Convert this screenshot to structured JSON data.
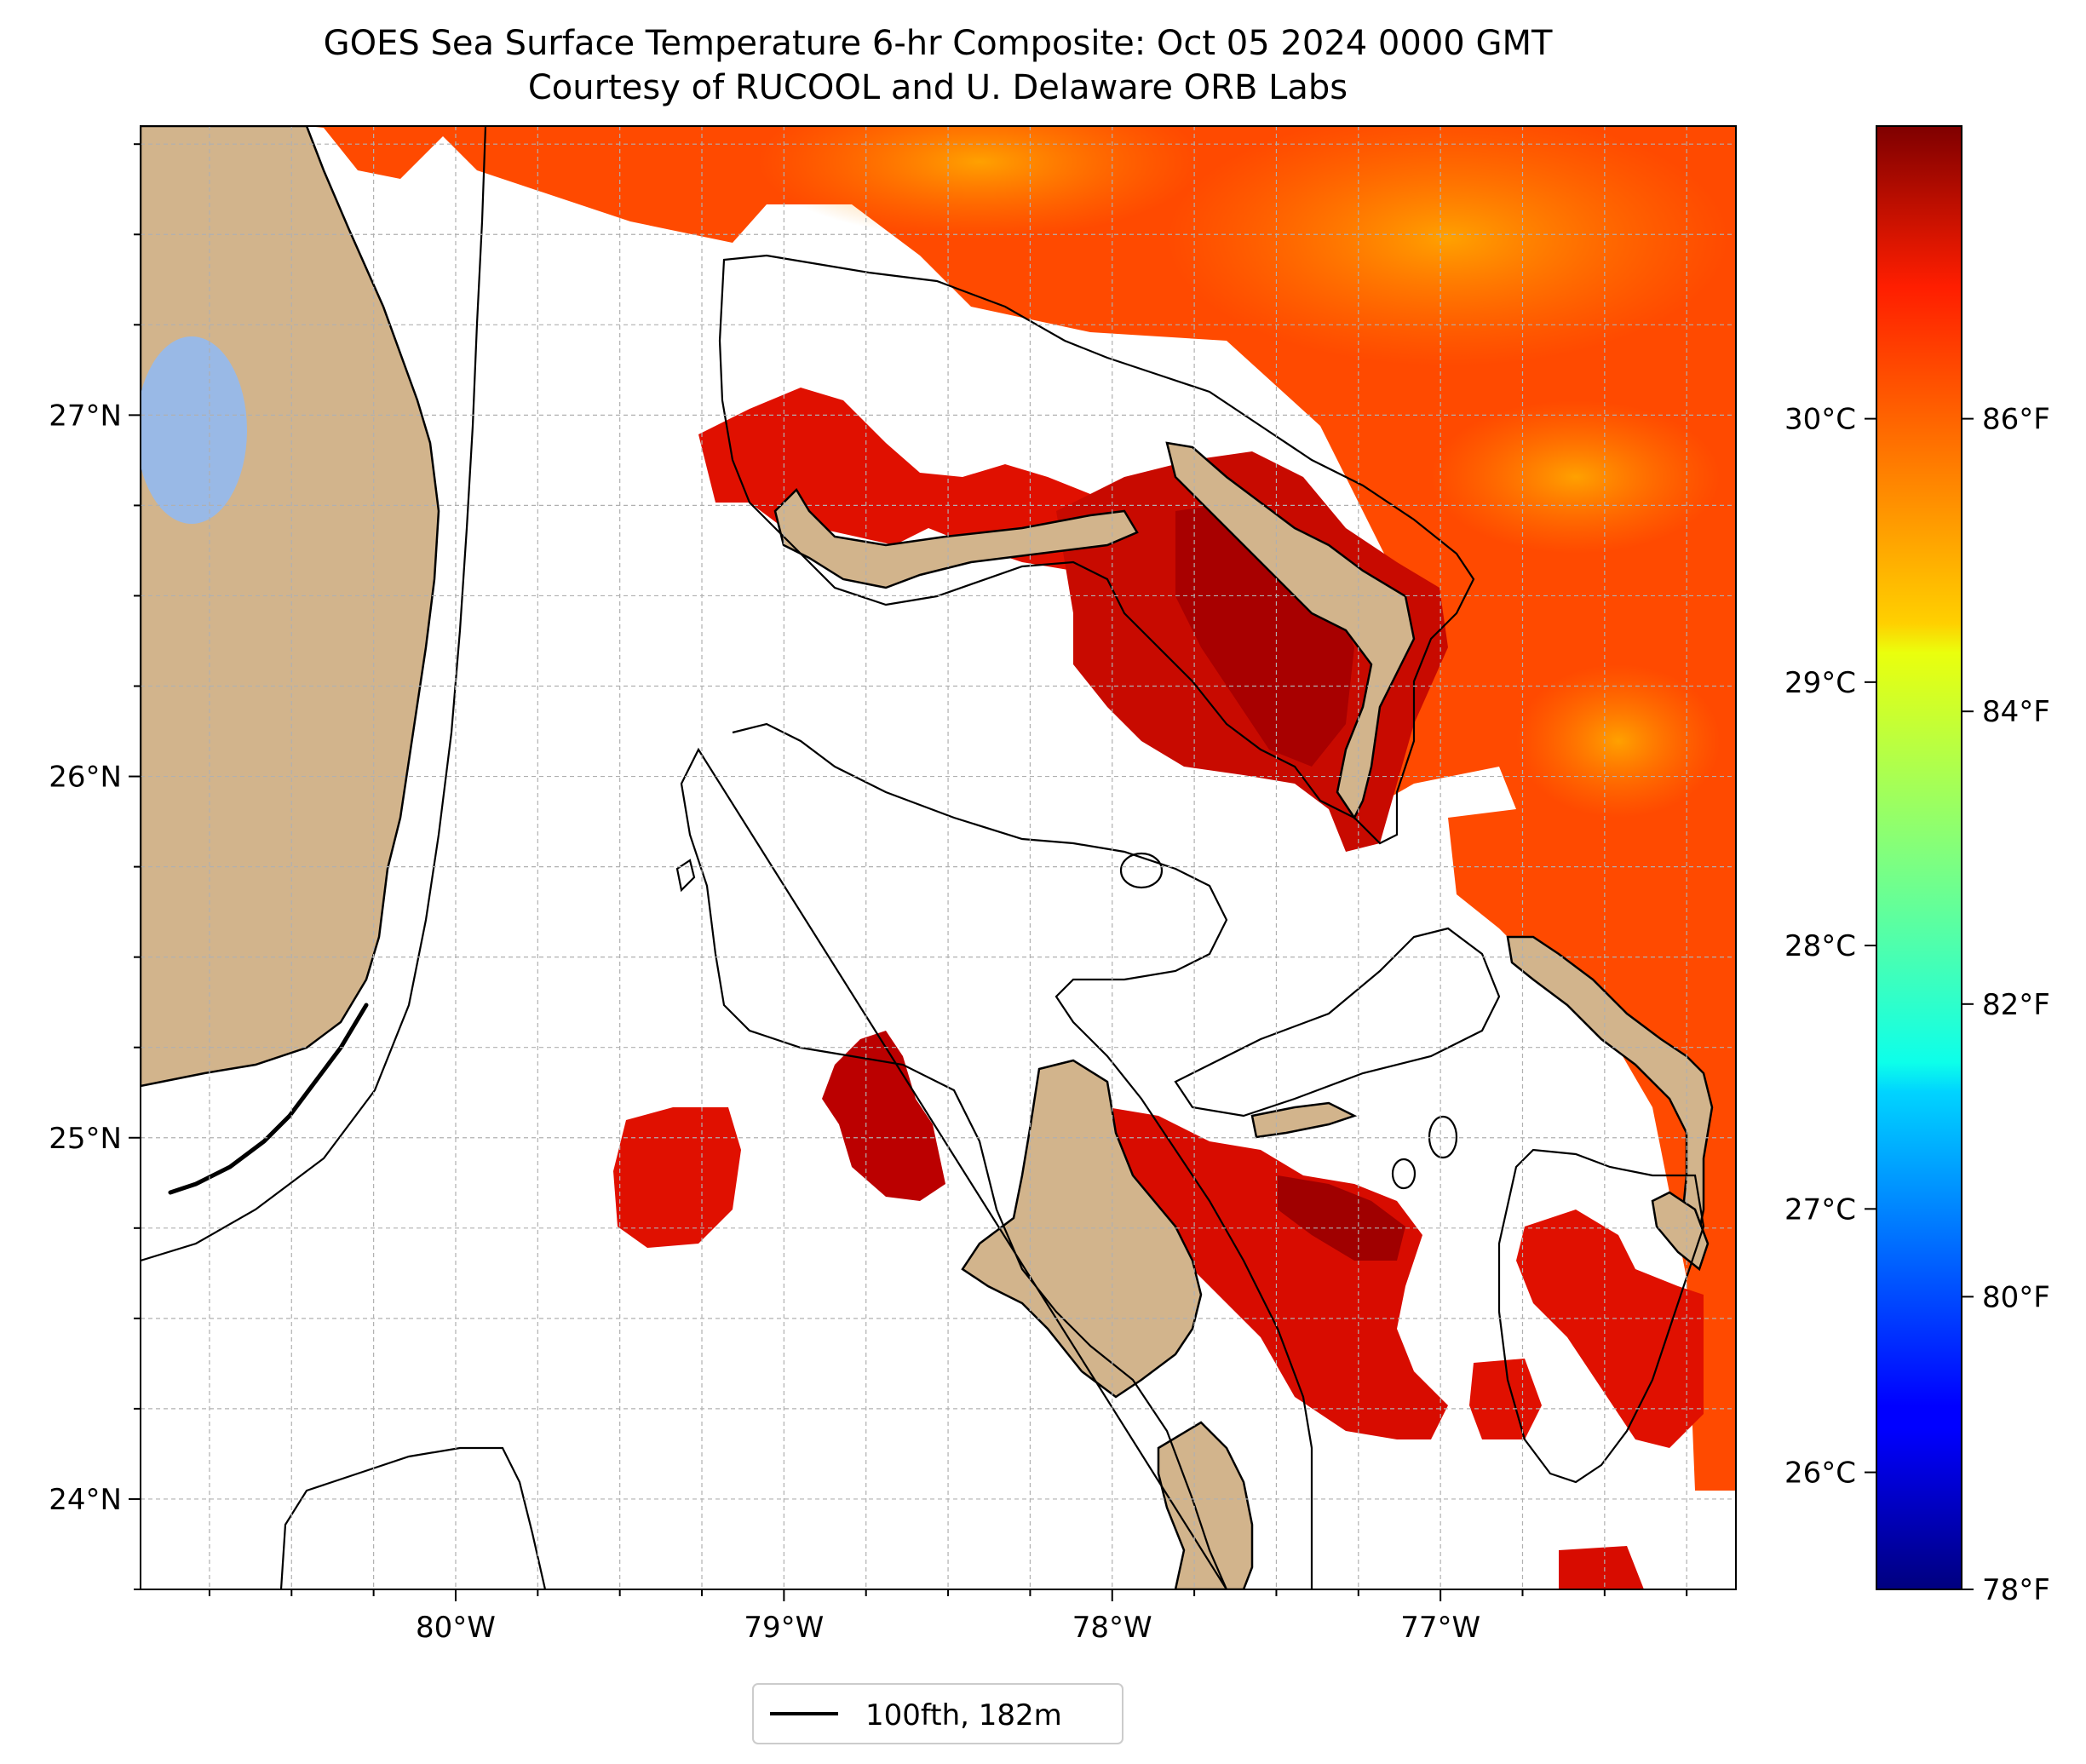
{
  "title": {
    "line1": "GOES Sea Surface Temperature 6-hr Composite: Oct 05 2024 0000 GMT",
    "line2": "Courtesy of RUCOOL and U. Delaware ORB Labs"
  },
  "map": {
    "lon_range": [
      -80.96,
      -76.1
    ],
    "lat_range": [
      23.75,
      27.8
    ],
    "longitude_ticks": [
      {
        "value": -80,
        "label": "80°W"
      },
      {
        "value": -79,
        "label": "79°W"
      },
      {
        "value": -78,
        "label": "78°W"
      },
      {
        "value": -77,
        "label": "77°W"
      }
    ],
    "latitude_ticks": [
      {
        "value": 24,
        "label": "24°N"
      },
      {
        "value": 25,
        "label": "25°N"
      },
      {
        "value": 26,
        "label": "26°N"
      },
      {
        "value": 27,
        "label": "27°N"
      }
    ],
    "gridlines": "dashed grey, every 0.25°",
    "colors": {
      "land": "#d2b48c",
      "lake": "#99b9e6",
      "no_data": "#ffffff",
      "contour": "#000000"
    }
  },
  "colorbar": {
    "colormap": "jet",
    "range_f": [
      78,
      88
    ],
    "celsius_ticks": [
      {
        "value": 26,
        "label": "26°C"
      },
      {
        "value": 27,
        "label": "27°C"
      },
      {
        "value": 28,
        "label": "28°C"
      },
      {
        "value": 29,
        "label": "29°C"
      },
      {
        "value": 30,
        "label": "30°C"
      }
    ],
    "fahrenheit_ticks": [
      {
        "value": 78,
        "label": "78°F"
      },
      {
        "value": 80,
        "label": "80°F"
      },
      {
        "value": 82,
        "label": "82°F"
      },
      {
        "value": 84,
        "label": "84°F"
      },
      {
        "value": 86,
        "label": "86°F"
      }
    ]
  },
  "legend": {
    "entries": [
      {
        "label": "100fth, 182m",
        "color": "#000000",
        "style": "line"
      }
    ]
  }
}
